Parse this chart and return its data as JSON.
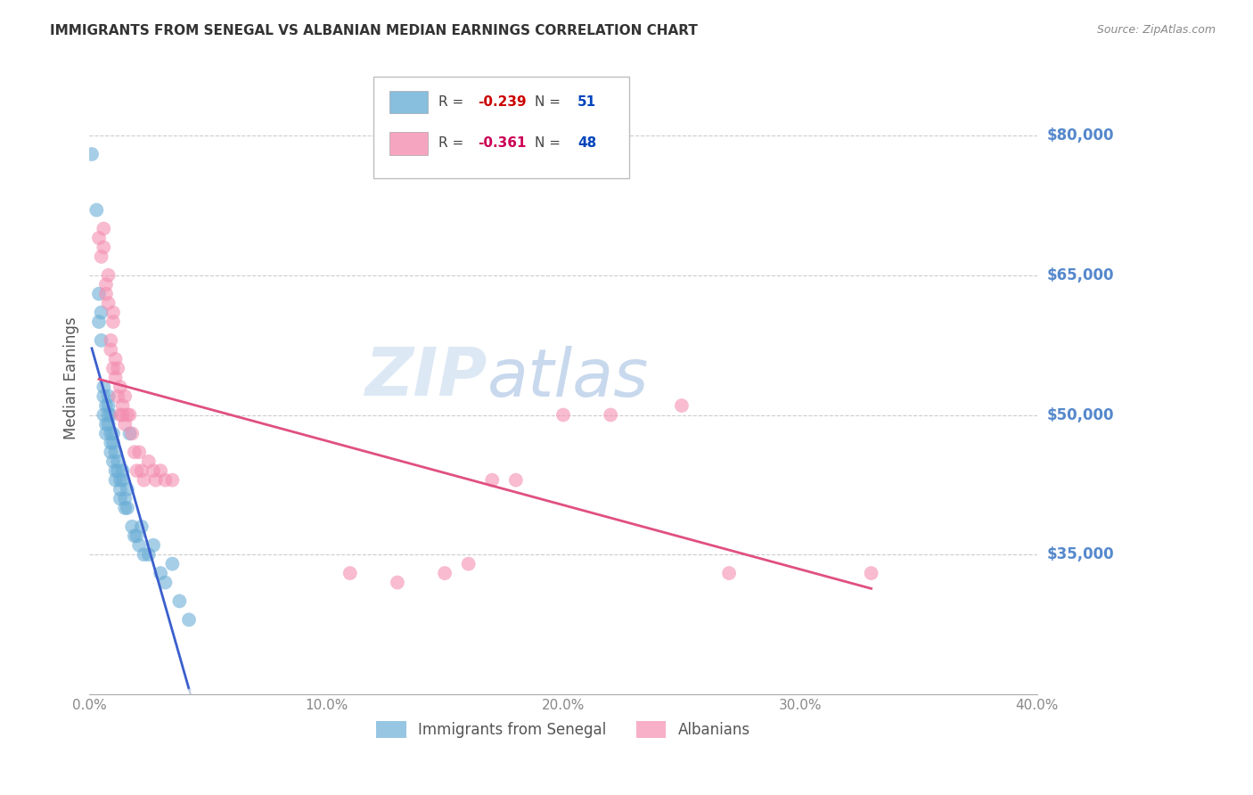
{
  "title": "IMMIGRANTS FROM SENEGAL VS ALBANIAN MEDIAN EARNINGS CORRELATION CHART",
  "source": "Source: ZipAtlas.com",
  "ylabel": "Median Earnings",
  "right_yticks": [
    35000,
    50000,
    65000,
    80000
  ],
  "right_yticklabels": [
    "$35,000",
    "$50,000",
    "$65,000",
    "$80,000"
  ],
  "senegal_x": [
    0.001,
    0.003,
    0.004,
    0.004,
    0.005,
    0.005,
    0.006,
    0.006,
    0.006,
    0.007,
    0.007,
    0.007,
    0.008,
    0.008,
    0.008,
    0.008,
    0.009,
    0.009,
    0.009,
    0.009,
    0.01,
    0.01,
    0.01,
    0.011,
    0.011,
    0.011,
    0.012,
    0.012,
    0.013,
    0.013,
    0.013,
    0.014,
    0.014,
    0.015,
    0.015,
    0.016,
    0.016,
    0.017,
    0.018,
    0.019,
    0.02,
    0.021,
    0.022,
    0.023,
    0.025,
    0.027,
    0.03,
    0.032,
    0.035,
    0.038,
    0.042
  ],
  "senegal_y": [
    78000,
    72000,
    60000,
    63000,
    58000,
    61000,
    50000,
    52000,
    53000,
    48000,
    51000,
    49000,
    51000,
    52000,
    50000,
    49000,
    48000,
    47000,
    46000,
    50000,
    45000,
    47000,
    48000,
    44000,
    46000,
    43000,
    44000,
    45000,
    43000,
    42000,
    41000,
    44000,
    43000,
    41000,
    40000,
    40000,
    42000,
    48000,
    38000,
    37000,
    37000,
    36000,
    38000,
    35000,
    35000,
    36000,
    33000,
    32000,
    34000,
    30000,
    28000
  ],
  "albanian_x": [
    0.004,
    0.005,
    0.006,
    0.006,
    0.007,
    0.007,
    0.008,
    0.008,
    0.009,
    0.009,
    0.01,
    0.01,
    0.01,
    0.011,
    0.011,
    0.012,
    0.012,
    0.013,
    0.013,
    0.014,
    0.014,
    0.015,
    0.015,
    0.016,
    0.017,
    0.018,
    0.019,
    0.02,
    0.021,
    0.022,
    0.023,
    0.025,
    0.027,
    0.028,
    0.03,
    0.032,
    0.035,
    0.11,
    0.13,
    0.15,
    0.16,
    0.17,
    0.18,
    0.2,
    0.22,
    0.25,
    0.27,
    0.33
  ],
  "albanian_y": [
    69000,
    67000,
    68000,
    70000,
    63000,
    64000,
    62000,
    65000,
    57000,
    58000,
    55000,
    60000,
    61000,
    54000,
    56000,
    52000,
    55000,
    50000,
    53000,
    50000,
    51000,
    52000,
    49000,
    50000,
    50000,
    48000,
    46000,
    44000,
    46000,
    44000,
    43000,
    45000,
    44000,
    43000,
    44000,
    43000,
    43000,
    33000,
    32000,
    33000,
    34000,
    43000,
    43000,
    50000,
    50000,
    51000,
    33000,
    33000
  ],
  "scatter_dot_color_blue": "#6baed6",
  "scatter_dot_color_pink": "#f48fb1",
  "trend_color_blue": "#3a5fcd",
  "trend_color_pink": "#e05080",
  "trend_ext_color": "#c0cce0",
  "background_color": "#ffffff",
  "grid_color": "#cccccc",
  "title_color": "#333333",
  "source_color": "#888888",
  "axis_label_color": "#5588cc",
  "watermark_zip": "ZIP",
  "watermark_atlas": "atlas",
  "watermark_color": "#dde8f5",
  "xmin": 0.0,
  "xmax": 0.4,
  "ymin": 20000,
  "ymax": 88000,
  "r_vals": [
    "-0.239",
    "-0.361"
  ],
  "n_vals": [
    "51",
    "48"
  ],
  "legend_labels": [
    "Immigrants from Senegal",
    "Albanians"
  ]
}
